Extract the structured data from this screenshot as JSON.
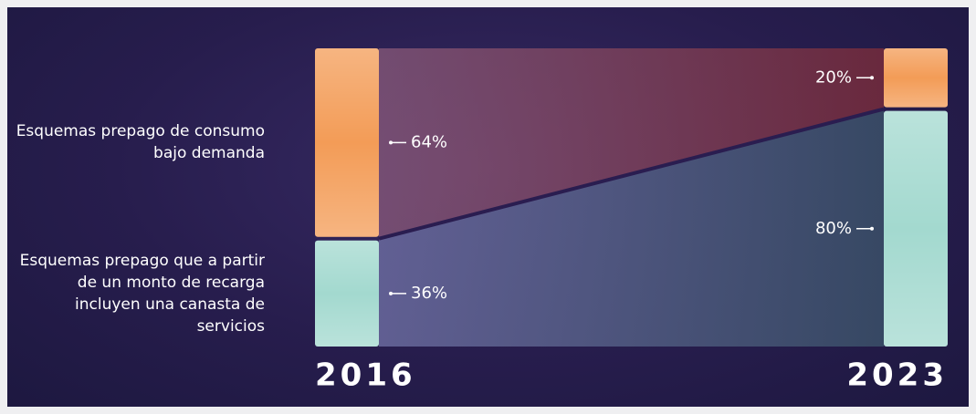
{
  "chart_data": {
    "type": "bar",
    "stacked": true,
    "categories": [
      "2016",
      "2023"
    ],
    "series": [
      {
        "name": "Esquemas prepago de consumo bajo demanda",
        "color": "#f39c57",
        "values": [
          64,
          20
        ],
        "value_labels": [
          "64%",
          "20%"
        ]
      },
      {
        "name": "Esquemas prepago que a partir de un monto de recarga incluyen una canasta de servicios",
        "color": "#a3d9cf",
        "values": [
          36,
          80
        ],
        "value_labels": [
          "36%",
          "80%"
        ]
      }
    ]
  }
}
